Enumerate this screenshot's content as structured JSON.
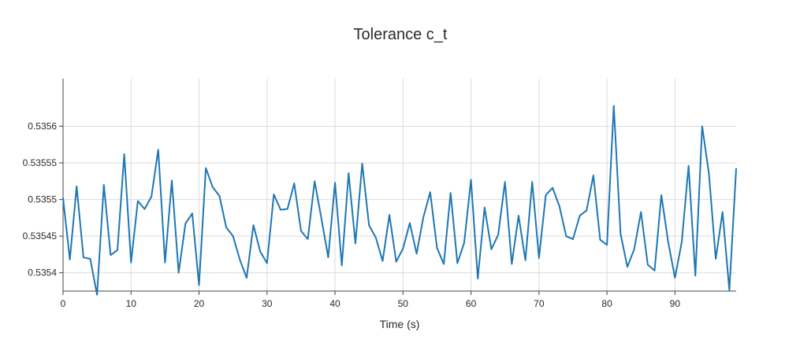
{
  "chart_data": {
    "type": "line",
    "title": "Tolerance c_t",
    "xlabel": "Time (s)",
    "ylabel": "",
    "xlim": [
      0,
      99
    ],
    "ylim": [
      0.535375,
      0.535665
    ],
    "grid": true,
    "x_ticks": [
      0,
      10,
      20,
      30,
      40,
      50,
      60,
      70,
      80,
      90
    ],
    "x_tick_labels": [
      "0",
      "10",
      "20",
      "30",
      "40",
      "50",
      "60",
      "70",
      "80",
      "90"
    ],
    "y_ticks": [
      0.5354,
      0.53545,
      0.5355,
      0.53555,
      0.5356
    ],
    "y_tick_labels": [
      "0.5354",
      "0.53545",
      "0.5355",
      "0.53555",
      "0.5356"
    ],
    "series": [
      {
        "color": "#1f77b4",
        "x": [
          0,
          1,
          2,
          3,
          4,
          5,
          6,
          7,
          8,
          9,
          10,
          11,
          12,
          13,
          14,
          15,
          16,
          17,
          18,
          19,
          20,
          21,
          22,
          23,
          24,
          25,
          26,
          27,
          28,
          29,
          30,
          31,
          32,
          33,
          34,
          35,
          36,
          37,
          38,
          39,
          40,
          41,
          42,
          43,
          44,
          45,
          46,
          47,
          48,
          49,
          50,
          51,
          52,
          53,
          54,
          55,
          56,
          57,
          58,
          59,
          60,
          61,
          62,
          63,
          64,
          65,
          66,
          67,
          68,
          69,
          70,
          71,
          72,
          73,
          74,
          75,
          76,
          77,
          78,
          79,
          80,
          81,
          82,
          83,
          84,
          85,
          86,
          87,
          88,
          89,
          90,
          91,
          92,
          93,
          94,
          95,
          96,
          97,
          98,
          99
        ],
        "values": [
          0.535502,
          0.535418,
          0.535518,
          0.535421,
          0.535419,
          0.53537,
          0.53552,
          0.535424,
          0.535431,
          0.535562,
          0.535414,
          0.535498,
          0.535487,
          0.535504,
          0.535568,
          0.535414,
          0.535526,
          0.5354,
          0.535467,
          0.535481,
          0.535383,
          0.535543,
          0.535517,
          0.535505,
          0.535462,
          0.53545,
          0.535418,
          0.535393,
          0.535465,
          0.535429,
          0.535413,
          0.535507,
          0.535486,
          0.535487,
          0.535522,
          0.535457,
          0.535446,
          0.535525,
          0.535474,
          0.535421,
          0.535523,
          0.53541,
          0.535536,
          0.53544,
          0.535549,
          0.535465,
          0.535448,
          0.535416,
          0.535479,
          0.535415,
          0.535433,
          0.535468,
          0.535426,
          0.535476,
          0.53551,
          0.535434,
          0.535412,
          0.535509,
          0.535413,
          0.535441,
          0.535527,
          0.535392,
          0.535489,
          0.535432,
          0.535452,
          0.535524,
          0.535412,
          0.535478,
          0.535417,
          0.535524,
          0.53542,
          0.535506,
          0.535516,
          0.535491,
          0.53545,
          0.535446,
          0.535478,
          0.535485,
          0.535533,
          0.535445,
          0.535438,
          0.535628,
          0.535453,
          0.535408,
          0.535432,
          0.535483,
          0.535411,
          0.535403,
          0.535506,
          0.535442,
          0.535393,
          0.535442,
          0.535546,
          0.535396,
          0.5356,
          0.535535,
          0.535419,
          0.535483,
          0.535376,
          0.535542
        ]
      }
    ]
  }
}
